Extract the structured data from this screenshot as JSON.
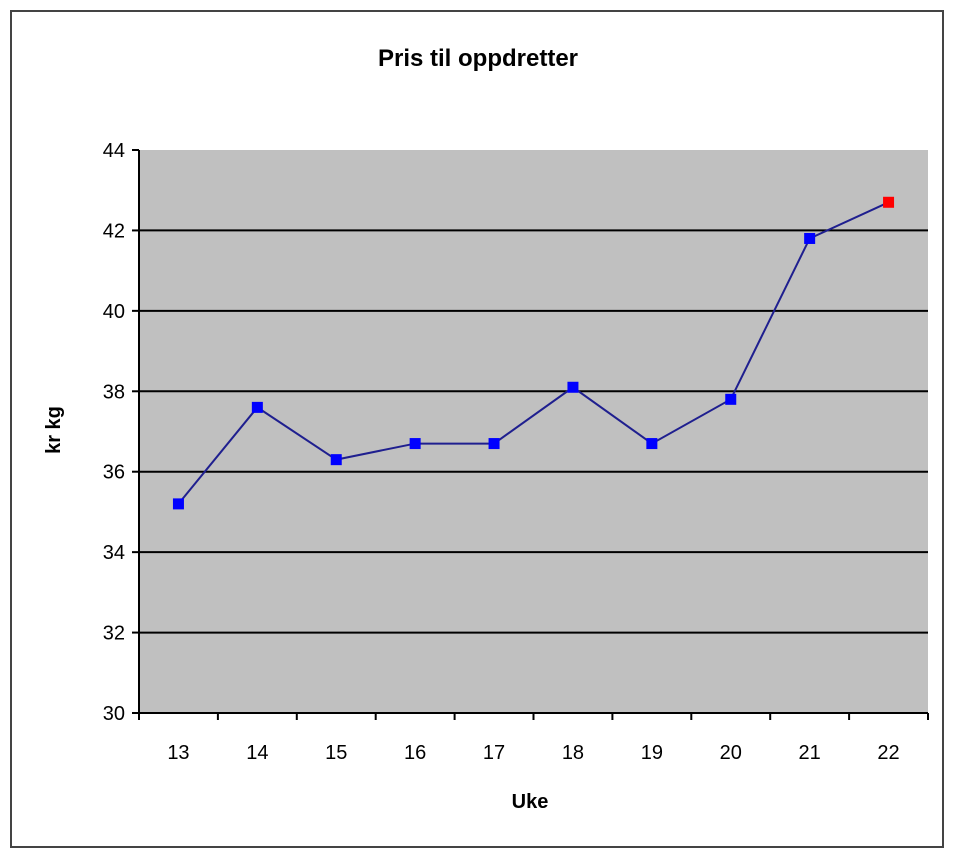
{
  "chart_data": {
    "type": "line",
    "title": "Pris til oppdretter",
    "xlabel": "Uke",
    "ylabel": "kr kg",
    "categories": [
      "13",
      "14",
      "15",
      "16",
      "17",
      "18",
      "19",
      "20",
      "21",
      "22"
    ],
    "series": [
      {
        "values": [
          35.2,
          37.6,
          36.3,
          36.7,
          36.7,
          38.1,
          36.7,
          37.8,
          41.8,
          42.7
        ],
        "color": "#0000ff",
        "line_color": "#1f1f8f",
        "highlight_last_color": "#ff0000"
      }
    ],
    "ylim": [
      30,
      44
    ],
    "yticks": [
      30,
      32,
      34,
      36,
      38,
      40,
      42,
      44
    ],
    "grid": true,
    "plot_background": "#c0c0c0"
  }
}
